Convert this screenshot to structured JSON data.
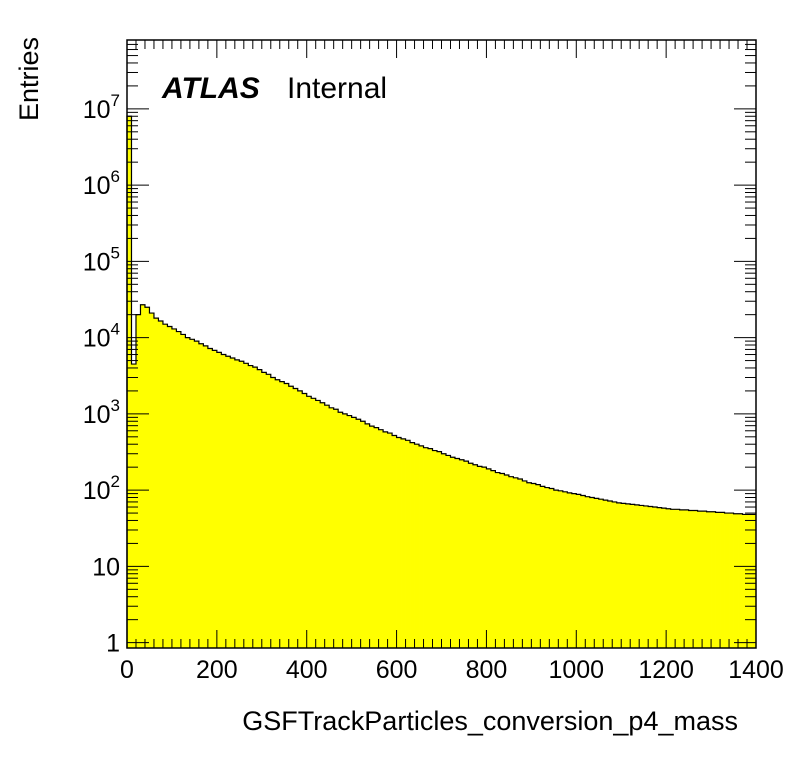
{
  "chart_data": {
    "type": "bar",
    "subtype": "histogram",
    "xlabel": "GSFTrackParticles_conversion_p4_mass",
    "ylabel": "Entries",
    "atlas_label": "ATLAS",
    "atlas_status": "Internal",
    "y_scale": "log",
    "xlim": [
      0,
      1400
    ],
    "ylim": [
      0.85,
      80000000
    ],
    "bin_width": 10,
    "fill_color": "#ffff00",
    "line_color": "#000000",
    "grid": false,
    "x_tick_labels": [
      "0",
      "200",
      "400",
      "600",
      "800",
      "1000",
      "1200",
      "1400"
    ],
    "x_tick_values": [
      0,
      200,
      400,
      600,
      800,
      1000,
      1200,
      1400
    ],
    "y_tick_values": [
      1,
      10,
      100,
      1000,
      10000,
      100000,
      1000000,
      10000000
    ],
    "y_tick_labels": [
      {
        "base": "1",
        "exp": ""
      },
      {
        "base": "10",
        "exp": ""
      },
      {
        "base": "10",
        "exp": "2"
      },
      {
        "base": "10",
        "exp": "3"
      },
      {
        "base": "10",
        "exp": "4"
      },
      {
        "base": "10",
        "exp": "5"
      },
      {
        "base": "10",
        "exp": "6"
      },
      {
        "base": "10",
        "exp": "7"
      }
    ],
    "bin_lows": [
      0,
      10,
      20,
      30,
      40,
      50,
      60,
      70,
      80,
      90,
      100,
      110,
      120,
      130,
      140,
      150,
      160,
      170,
      180,
      190,
      200,
      210,
      220,
      230,
      240,
      250,
      260,
      270,
      280,
      290,
      300,
      310,
      320,
      330,
      340,
      350,
      360,
      370,
      380,
      390,
      400,
      410,
      420,
      430,
      440,
      450,
      460,
      470,
      480,
      490,
      500,
      510,
      520,
      530,
      540,
      550,
      560,
      570,
      580,
      590,
      600,
      610,
      620,
      630,
      640,
      650,
      660,
      670,
      680,
      690,
      700,
      710,
      720,
      730,
      740,
      750,
      760,
      770,
      780,
      790,
      800,
      810,
      820,
      830,
      840,
      850,
      860,
      870,
      880,
      890,
      900,
      910,
      920,
      930,
      940,
      950,
      960,
      970,
      980,
      990,
      1000,
      1010,
      1020,
      1030,
      1040,
      1050,
      1060,
      1070,
      1080,
      1090,
      1100,
      1110,
      1120,
      1130,
      1140,
      1150,
      1160,
      1170,
      1180,
      1190,
      1200,
      1210,
      1220,
      1230,
      1240,
      1250,
      1260,
      1270,
      1280,
      1290,
      1300,
      1310,
      1320,
      1330,
      1340,
      1350,
      1360,
      1370,
      1380,
      1390
    ],
    "values": [
      8000000,
      4500,
      20000,
      27000,
      25000,
      21000,
      18000,
      16500,
      15000,
      14000,
      13000,
      12000,
      11000,
      10000,
      9500,
      9000,
      8300,
      7800,
      7200,
      6800,
      6400,
      6000,
      5700,
      5400,
      5100,
      4900,
      4600,
      4300,
      4100,
      3800,
      3500,
      3300,
      3000,
      2800,
      2650,
      2500,
      2300,
      2150,
      2000,
      1850,
      1700,
      1600,
      1500,
      1400,
      1300,
      1200,
      1150,
      1050,
      1000,
      950,
      900,
      850,
      800,
      740,
      690,
      660,
      620,
      580,
      560,
      520,
      490,
      470,
      450,
      420,
      400,
      380,
      360,
      350,
      330,
      320,
      300,
      285,
      270,
      260,
      250,
      240,
      225,
      215,
      205,
      200,
      190,
      180,
      170,
      165,
      158,
      150,
      145,
      140,
      132,
      125,
      122,
      118,
      112,
      108,
      105,
      100,
      98,
      95,
      92,
      90,
      88,
      85,
      82,
      80,
      78,
      76,
      74,
      72,
      70,
      68,
      67,
      66,
      65,
      64,
      63,
      62,
      61,
      60,
      59,
      58,
      57,
      56,
      56,
      55,
      55,
      54,
      54,
      53,
      53,
      52,
      52,
      51,
      51,
      50,
      50,
      49,
      49,
      48,
      48,
      48
    ]
  }
}
